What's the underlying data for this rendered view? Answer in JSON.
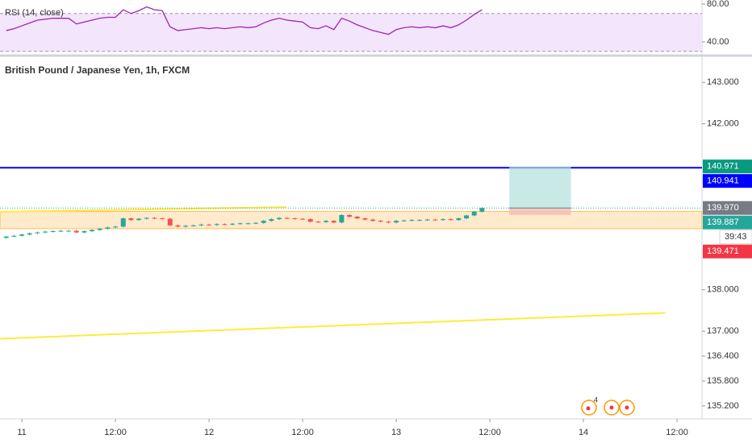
{
  "chart_data": [
    {
      "type": "line",
      "title": "RSI (14, close)",
      "color": "#9c27b0",
      "x": [
        -2,
        -1,
        0,
        1,
        2,
        3,
        4,
        5,
        6,
        7,
        8,
        9,
        10,
        11,
        12,
        13,
        14,
        15,
        16,
        17,
        18,
        19,
        20,
        21,
        22,
        23,
        24,
        25,
        26,
        27,
        28,
        29,
        30,
        31,
        32,
        33,
        34,
        35,
        36,
        37,
        38,
        39,
        40,
        41,
        42,
        43,
        44,
        45,
        46,
        47,
        48,
        49,
        50,
        51,
        52,
        53,
        54,
        55,
        56,
        57,
        58,
        59
      ],
      "values": [
        52,
        54,
        57,
        60,
        63,
        64,
        65,
        65,
        65,
        59,
        61,
        63,
        65,
        66,
        66,
        74,
        70,
        73,
        77,
        74,
        73,
        56,
        52,
        53,
        54,
        55,
        54,
        55,
        54,
        55,
        56,
        55,
        56,
        60,
        63,
        65,
        63,
        62,
        61,
        55,
        54,
        57,
        53,
        65,
        62,
        58,
        55,
        52,
        50,
        48,
        53,
        55,
        56,
        55,
        56,
        55,
        57,
        55,
        58,
        63,
        69,
        74
      ],
      "ylim": [
        26.4,
        84.3
      ],
      "yticks": [
        {
          "value": 80,
          "label": "80.00"
        },
        {
          "value": 40,
          "label": "40.00"
        }
      ],
      "bands": [
        70,
        30
      ],
      "band_color": "#f3e5fc"
    },
    {
      "type": "candlestick",
      "title": "British Pound / Japanese Yen, 1h, FXCM",
      "up_color": "#26a69a",
      "down_color": "#ef5350",
      "x": [
        -2,
        -1,
        0,
        1,
        2,
        3,
        4,
        5,
        6,
        7,
        8,
        9,
        10,
        11,
        12,
        13,
        14,
        15,
        16,
        17,
        18,
        19,
        20,
        21,
        22,
        23,
        24,
        25,
        26,
        27,
        28,
        29,
        30,
        31,
        32,
        33,
        34,
        35,
        36,
        37,
        38,
        39,
        40,
        41,
        42,
        43,
        44,
        45,
        46,
        47,
        48,
        49,
        50,
        51,
        52,
        53,
        54,
        55,
        56,
        57,
        58,
        59
      ],
      "open": [
        139.25,
        139.28,
        139.3,
        139.33,
        139.36,
        139.38,
        139.4,
        139.41,
        139.42,
        139.42,
        139.38,
        139.41,
        139.44,
        139.47,
        139.5,
        139.52,
        139.72,
        139.68,
        139.71,
        139.73,
        139.72,
        139.71,
        139.55,
        139.52,
        139.54,
        139.55,
        139.57,
        139.56,
        139.58,
        139.57,
        139.59,
        139.6,
        139.6,
        139.61,
        139.66,
        139.7,
        139.73,
        139.72,
        139.71,
        139.7,
        139.64,
        139.63,
        139.66,
        139.62,
        139.8,
        139.76,
        139.72,
        139.69,
        139.66,
        139.64,
        139.62,
        139.66,
        139.67,
        139.68,
        139.68,
        139.69,
        139.68,
        139.7,
        139.68,
        139.72,
        139.79,
        139.88
      ],
      "high": [
        139.3,
        139.32,
        139.35,
        139.38,
        139.4,
        139.42,
        139.43,
        139.44,
        139.44,
        139.44,
        139.43,
        139.46,
        139.49,
        139.52,
        139.54,
        139.74,
        139.74,
        139.73,
        139.75,
        139.75,
        139.74,
        139.73,
        139.57,
        139.56,
        139.57,
        139.59,
        139.59,
        139.6,
        139.6,
        139.61,
        139.62,
        139.62,
        139.63,
        139.68,
        139.72,
        139.75,
        139.75,
        139.74,
        139.73,
        139.72,
        139.66,
        139.68,
        139.68,
        139.82,
        139.82,
        139.78,
        139.74,
        139.71,
        139.68,
        139.66,
        139.68,
        139.69,
        139.7,
        139.7,
        139.71,
        139.71,
        139.72,
        139.72,
        139.74,
        139.81,
        139.9,
        139.99
      ],
      "low": [
        139.23,
        139.26,
        139.28,
        139.31,
        139.34,
        139.36,
        139.38,
        139.39,
        139.4,
        139.36,
        139.36,
        139.39,
        139.42,
        139.45,
        139.48,
        139.5,
        139.66,
        139.66,
        139.69,
        139.7,
        139.69,
        139.53,
        139.5,
        139.5,
        139.52,
        139.53,
        139.54,
        139.54,
        139.55,
        139.55,
        139.57,
        139.58,
        139.58,
        139.59,
        139.64,
        139.68,
        139.7,
        139.69,
        139.68,
        139.62,
        139.61,
        139.61,
        139.6,
        139.6,
        139.74,
        139.7,
        139.67,
        139.64,
        139.62,
        139.6,
        139.6,
        139.64,
        139.65,
        139.66,
        139.66,
        139.66,
        139.66,
        139.66,
        139.66,
        139.7,
        139.77,
        139.86
      ],
      "close": [
        139.28,
        139.3,
        139.33,
        139.36,
        139.38,
        139.4,
        139.41,
        139.42,
        139.42,
        139.38,
        139.41,
        139.44,
        139.47,
        139.5,
        139.52,
        139.72,
        139.68,
        139.71,
        139.73,
        139.72,
        139.71,
        139.55,
        139.52,
        139.54,
        139.55,
        139.57,
        139.56,
        139.58,
        139.57,
        139.59,
        139.6,
        139.6,
        139.61,
        139.66,
        139.7,
        139.73,
        139.72,
        139.71,
        139.7,
        139.64,
        139.63,
        139.66,
        139.62,
        139.8,
        139.76,
        139.72,
        139.69,
        139.66,
        139.64,
        139.62,
        139.66,
        139.67,
        139.68,
        139.68,
        139.69,
        139.68,
        139.7,
        139.68,
        139.72,
        139.79,
        139.88,
        139.97
      ],
      "xlim": [
        -2.8,
        87.2
      ],
      "xticks": [
        {
          "value": 0,
          "label": "11"
        },
        {
          "value": 12,
          "label": "12:00"
        },
        {
          "value": 24,
          "label": "12"
        },
        {
          "value": 36,
          "label": "12:00"
        },
        {
          "value": 48,
          "label": "13"
        },
        {
          "value": 60,
          "label": "12:00"
        },
        {
          "value": 72,
          "label": "14"
        },
        {
          "value": 84,
          "label": "12:00"
        }
      ],
      "ylim": [
        134.79,
        143.43
      ],
      "yticks": [
        {
          "value": 143,
          "label": "143.000"
        },
        {
          "value": 142,
          "label": "142.000"
        },
        {
          "value": 138,
          "label": "138.000"
        },
        {
          "value": 137,
          "label": "137.000"
        },
        {
          "value": 136.4,
          "label": "136.400"
        },
        {
          "value": 135.8,
          "label": "135.800"
        },
        {
          "value": 135.2,
          "label": "135.200"
        }
      ],
      "hline": {
        "value": 140.941,
        "color": "#0000ff"
      },
      "zone": {
        "values": [
          139.471,
          139.887
        ],
        "color": "#ff9800"
      },
      "trendlines": [
        {
          "x": [
            -2.8,
            33.9
          ],
          "values": [
            139.88,
            139.99
          ],
          "color": "#ffeb3b"
        },
        {
          "x": [
            -2.8,
            82.5
          ],
          "values": [
            136.82,
            137.44
          ],
          "color": "#ffeb3b"
        }
      ],
      "position": {
        "x": [
          62.5,
          70.4
        ],
        "target": 140.971,
        "entry": 139.97,
        "stop": 139.8
      },
      "price_labels": [
        {
          "value": 140.971,
          "label": "140.971",
          "color": "#089981"
        },
        {
          "value": 140.941,
          "label": "140.941",
          "color": "#0000ff"
        },
        {
          "value": 139.97,
          "label": "139.970",
          "color": "#787b86"
        },
        {
          "value": 139.887,
          "label": "139.887",
          "color": "#26a69a"
        },
        {
          "value": 139.471,
          "label": "139.471",
          "color": "#f23645"
        }
      ],
      "countdown": "39:43",
      "event_count": "4"
    }
  ]
}
